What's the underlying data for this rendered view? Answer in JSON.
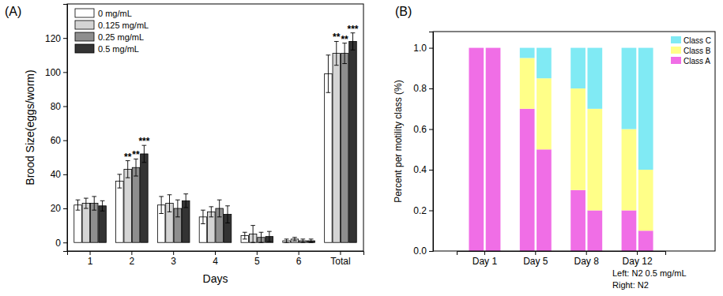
{
  "chart_data": [
    {
      "type": "bar",
      "title": "(A)",
      "x_label": "Days",
      "y_label": "Brood Size(eggs/worm)",
      "categories": [
        "1",
        "2",
        "3",
        "4",
        "5",
        "6",
        "Total"
      ],
      "ylim": [
        -5,
        140
      ],
      "yticks": [
        0,
        20,
        40,
        60,
        80,
        100,
        120
      ],
      "grid": false,
      "legend": "top-left",
      "series": [
        {
          "name": "0 mg/mL",
          "color": "#ffffff",
          "values": [
            22,
            36,
            22,
            15,
            4,
            1,
            99
          ],
          "errors": [
            3,
            4,
            5,
            4,
            2,
            1,
            11
          ],
          "significance": [
            null,
            null,
            null,
            null,
            null,
            null,
            null
          ]
        },
        {
          "name": "0.125 mg/mL",
          "color": "#d4d4d4",
          "values": [
            23,
            43,
            23,
            18,
            5,
            2,
            111
          ],
          "errors": [
            3,
            5,
            5,
            3,
            5,
            1,
            7
          ],
          "significance": [
            null,
            "**",
            null,
            null,
            null,
            null,
            "**"
          ]
        },
        {
          "name": "0.25 mg/mL",
          "color": "#8e8e8e",
          "values": [
            23,
            44,
            20,
            20,
            3,
            1,
            111
          ],
          "errors": [
            4,
            5,
            5,
            5,
            3,
            1,
            6
          ],
          "significance": [
            null,
            "**",
            null,
            null,
            null,
            null,
            "**"
          ]
        },
        {
          "name": "0.5 mg/mL",
          "color": "#333333",
          "values": [
            21.5,
            52,
            24.5,
            16.5,
            3.5,
            1,
            118
          ],
          "errors": [
            3,
            5,
            4,
            5,
            3,
            1,
            5
          ],
          "significance": [
            null,
            "***",
            null,
            null,
            null,
            null,
            "***"
          ]
        }
      ]
    },
    {
      "type": "bar",
      "title": "(B)",
      "y_label": "Percent per motility class (%)",
      "categories": [
        "Day 1",
        "Day 5",
        "Day 8",
        "Day 12"
      ],
      "stacked": true,
      "ylim": [
        0,
        1.08
      ],
      "yticks": [
        {
          "value": 0,
          "label": "0.0"
        },
        {
          "value": 0.2,
          "label": "0.2"
        },
        {
          "value": 0.4,
          "label": "0.4"
        },
        {
          "value": 0.6,
          "label": "0.6"
        },
        {
          "value": 0.8,
          "label": "0.8"
        },
        {
          "value": 1,
          "label": "1.0"
        }
      ],
      "grid": false,
      "legend": "top-right",
      "annotations": [
        "Left: N2 0.5 mg/mL",
        "Right: N2"
      ],
      "series": [
        {
          "name": "Class A",
          "color": "#f06ee6",
          "values": [
            [
              1,
              1
            ],
            [
              0.7,
              0.5
            ],
            [
              0.3,
              0.2
            ],
            [
              0.2,
              0.1
            ]
          ]
        },
        {
          "name": "Class B",
          "color": "#ffff88",
          "values": [
            [
              0,
              0
            ],
            [
              0.25,
              0.35
            ],
            [
              0.5,
              0.5
            ],
            [
              0.4,
              0.3
            ]
          ]
        },
        {
          "name": "Class C",
          "color": "#80eaf4",
          "values": [
            [
              0,
              0
            ],
            [
              0.05,
              0.15
            ],
            [
              0.2,
              0.3
            ],
            [
              0.4,
              0.6
            ]
          ]
        }
      ]
    }
  ]
}
